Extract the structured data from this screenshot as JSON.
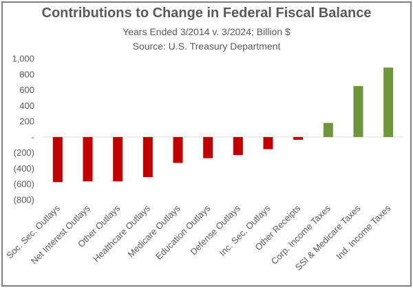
{
  "chart_data": {
    "type": "bar",
    "title": "Contributions to Change in Federal Fiscal Balance",
    "subtitle": "Years Ended 3/2014 v. 3/2024; Billion $",
    "source": "Source:  U.S. Treasury Department",
    "categories": [
      "Soc. Sec. Outlays",
      "Net Interest Outlays",
      "Other Outlays",
      "Healthcare Outlays",
      "Medicare Outlays",
      "Education Outlays",
      "Defense Outlays",
      "Inc. Sec. Outlays",
      "Other Receipts",
      "Corp. Income Taxes",
      "SSI & Medicare Taxes",
      "Ind. Income Taxes"
    ],
    "values": [
      -575,
      -565,
      -565,
      -510,
      -330,
      -270,
      -230,
      -155,
      -35,
      180,
      650,
      885
    ],
    "ylim": [
      -800,
      1000
    ],
    "yticks": [
      1000,
      800,
      600,
      400,
      200,
      0,
      -200,
      -400,
      -600,
      -800
    ],
    "ytick_labels": [
      "1,000",
      "800",
      "600",
      "400",
      "200",
      "-",
      "(200)",
      "(400)",
      "(600)",
      "(800)"
    ],
    "colors": {
      "negative": "#c00000",
      "positive": "#70963c"
    },
    "grid": false,
    "legend": "none"
  }
}
